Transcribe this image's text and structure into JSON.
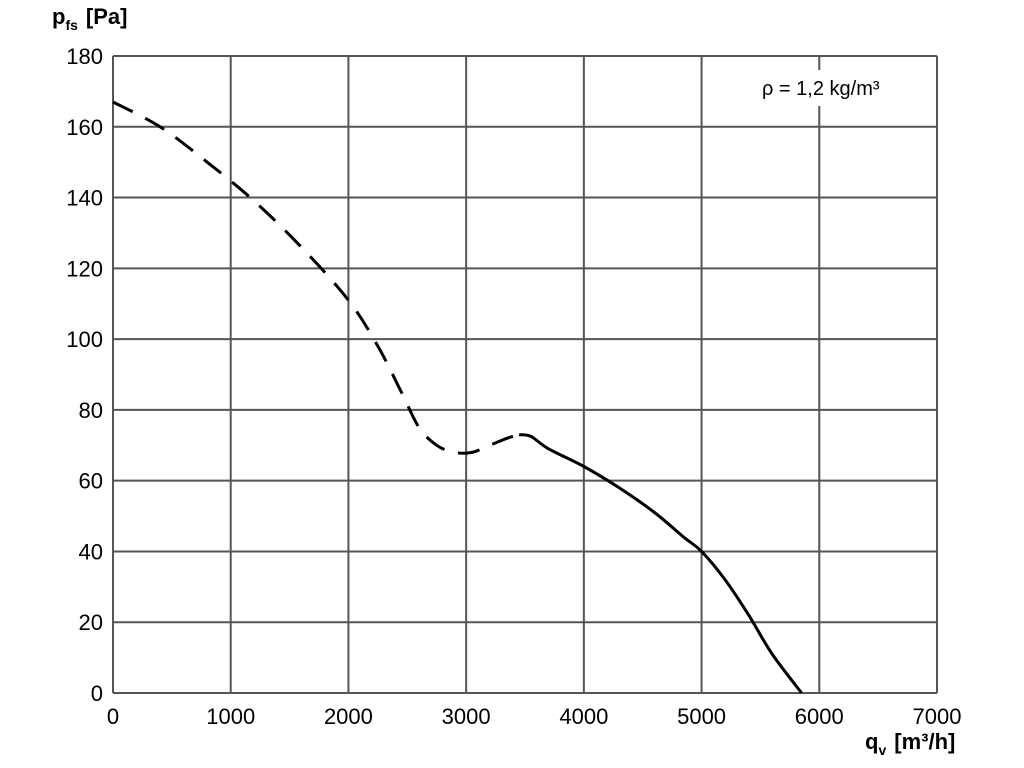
{
  "chart_data": {
    "type": "line",
    "title": "",
    "ylabel": {
      "main": "p",
      "sub": "fs",
      "unit": "[Pa]"
    },
    "xlabel": {
      "main": "q",
      "sub": "v",
      "unit": "[m³/h]"
    },
    "annotation": "ρ = 1,2 kg/m³",
    "xlim": [
      0,
      7000
    ],
    "ylim": [
      0,
      180
    ],
    "xticks": [
      0,
      1000,
      2000,
      3000,
      4000,
      5000,
      6000,
      7000
    ],
    "yticks": [
      0,
      20,
      40,
      60,
      80,
      100,
      120,
      140,
      160,
      180
    ],
    "grid": true,
    "line_color": "#000000",
    "grid_color": "#555555",
    "series": [
      {
        "style": "dashed",
        "x": [
          0,
          400,
          800,
          1200,
          1600,
          2000,
          2250,
          2450,
          2600,
          2750,
          2900,
          3050,
          3200,
          3350,
          3450
        ],
        "y": [
          167,
          160,
          150,
          139,
          126,
          111,
          98,
          85,
          75,
          70,
          68,
          68,
          70,
          72,
          73
        ]
      },
      {
        "style": "solid",
        "x": [
          3450,
          3550,
          3700,
          4000,
          4300,
          4600,
          4850,
          5000,
          5200,
          5400,
          5600,
          5850
        ],
        "y": [
          73,
          72.5,
          69,
          64,
          58,
          51,
          44,
          40,
          32,
          22,
          11,
          0
        ]
      }
    ]
  }
}
